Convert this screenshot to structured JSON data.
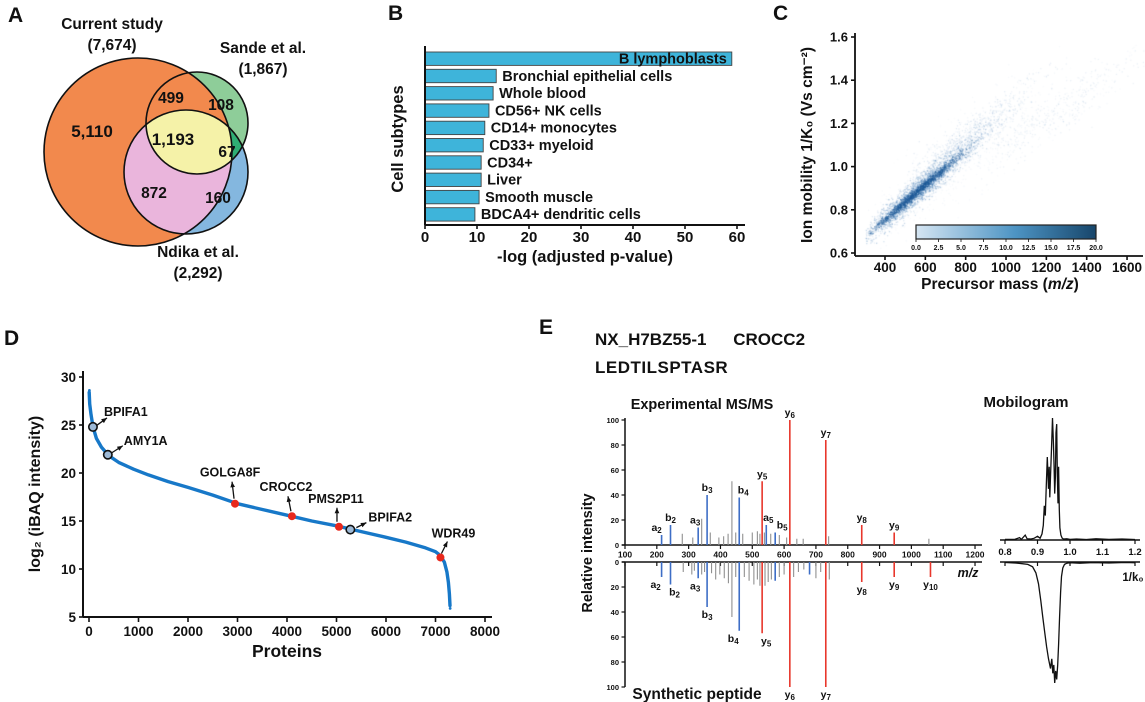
{
  "figure_labels": {
    "a": "A",
    "b": "B",
    "c": "C",
    "d": "D",
    "e": "E"
  },
  "colors": {
    "venn_current": "#f2894d",
    "venn_sande": "#8ecd99",
    "venn_ndika": "#84b7df",
    "venn_current_ndika": "#eab5dc",
    "venn_sande_ndika": "#2fae74",
    "venn_all": "#f5f2a8",
    "bar_fill": "#3eb4da",
    "curve_blue": "#1778c8",
    "marker_red": "#e8281c",
    "peak_blue": "#3e6ec6",
    "label_blue": "#222fa8",
    "peak_red": "#e8372c",
    "label_red": "#e8251a",
    "peak_gray": "#909090",
    "cbar_light": "#d5e5f2",
    "cbar_dark": "#17466b"
  },
  "chart_data": [
    {
      "id": "venn",
      "type": "venn",
      "sets": [
        {
          "name": "Current study",
          "count": "(7,674)"
        },
        {
          "name": "Sande et al.",
          "count": "(1,867)"
        },
        {
          "name": "Ndika et al.",
          "count": "(2,292)"
        }
      ],
      "regions": {
        "current_only": "5,110",
        "current_sande": "499",
        "sande_only": "108",
        "all_three": "1,193",
        "sande_ndika": "67",
        "current_ndika": "872",
        "ndika_only": "160"
      }
    },
    {
      "id": "cell-subtypes",
      "type": "bar",
      "orientation": "horizontal",
      "categories": [
        "B lymphoblasts",
        "Bronchial epithelial cells",
        "Whole blood",
        "CD56+ NK cells",
        "CD14+ monocytes",
        "CD33+ myeloid",
        "CD34+",
        "Liver",
        "Smooth muscle",
        "BDCA4+ dendritic cells"
      ],
      "values": [
        59,
        13.7,
        13.1,
        12.3,
        11.5,
        11.2,
        10.8,
        10.8,
        10.4,
        9.6
      ],
      "xlabel": "-log (adjusted p-value)",
      "ylabel": "Cell subtypes",
      "xlim": [
        0,
        60
      ],
      "xticks": [
        0,
        10,
        20,
        30,
        40,
        50,
        60
      ]
    },
    {
      "id": "ion-mobility",
      "type": "scatter",
      "xlabel_main": "Precursor mass (",
      "xlabel_italic": "m/z",
      "xlabel_end": ")",
      "ylabel": "Ion mobility 1/K₀ (Vs cm⁻²)",
      "xlim": [
        250,
        1700
      ],
      "ylim": [
        0.6,
        1.6
      ],
      "xticks": [
        400,
        600,
        800,
        1000,
        1200,
        1400,
        1600
      ],
      "yticks": [
        "0.6",
        "0.8",
        "1.0",
        "1.2",
        "1.4",
        "1.6"
      ],
      "colorbar_ticks": [
        "0.0",
        "2.5",
        "5.0",
        "7.5",
        "10.0",
        "12.5",
        "15.0",
        "17.5",
        "20.0"
      ],
      "density_bands": [
        {
          "n": 2400,
          "x_mean": 560,
          "x_sd": 130,
          "x_min": 300,
          "x_max": 1000,
          "slope": 0.0008,
          "intercept": 0.44,
          "noise": 0.032,
          "alpha": 0.3
        },
        {
          "n": 1300,
          "x_mean": 560,
          "x_sd": 110,
          "x_min": 320,
          "x_max": 950,
          "slope": 0.0008,
          "intercept": 0.44,
          "noise": 0.011,
          "alpha": 0.55,
          "core": true
        },
        {
          "n": 900,
          "x_mean": 820,
          "x_sd": 170,
          "x_min": 500,
          "x_max": 1300,
          "slope": 0.0007,
          "intercept": 0.56,
          "noise": 0.05,
          "alpha": 0.14
        },
        {
          "n": 450,
          "x_mean": 1250,
          "x_sd": 230,
          "x_min": 850,
          "x_max": 1700,
          "slope": 0.00066,
          "intercept": 0.43,
          "noise": 0.055,
          "alpha": 0.11
        },
        {
          "n": 600,
          "x_mean": 700,
          "x_sd": 220,
          "x_min": 300,
          "x_max": 1450,
          "slope": 0.00075,
          "intercept": 0.47,
          "noise": 0.09,
          "alpha": 0.06
        }
      ]
    },
    {
      "id": "ibaq-rank",
      "type": "scatter",
      "xlabel": "Proteins",
      "ylabel": "log₂ (iBAQ intensity)",
      "xlim": [
        0,
        8000
      ],
      "ylim": [
        5,
        30
      ],
      "xticks": [
        0,
        1000,
        2000,
        3000,
        4000,
        5000,
        6000,
        7000,
        8000
      ],
      "yticks": [
        5,
        10,
        15,
        20,
        25,
        30
      ],
      "curve": [
        [
          5,
          28.4
        ],
        [
          15,
          27.2
        ],
        [
          40,
          26.1
        ],
        [
          80,
          24.8
        ],
        [
          150,
          23.6
        ],
        [
          250,
          22.7
        ],
        [
          400,
          21.8
        ],
        [
          600,
          21.1
        ],
        [
          900,
          20.4
        ],
        [
          1200,
          19.8
        ],
        [
          1600,
          19.1
        ],
        [
          2000,
          18.5
        ],
        [
          2500,
          17.7
        ],
        [
          3000,
          16.8
        ],
        [
          3500,
          16.2
        ],
        [
          4000,
          15.6
        ],
        [
          4500,
          15.0
        ],
        [
          5000,
          14.5
        ],
        [
          5500,
          13.9
        ],
        [
          6000,
          13.3
        ],
        [
          6400,
          12.8
        ],
        [
          6800,
          12.2
        ],
        [
          7000,
          11.8
        ],
        [
          7100,
          11.4
        ],
        [
          7180,
          10.7
        ],
        [
          7230,
          9.7
        ],
        [
          7260,
          8.6
        ],
        [
          7280,
          7.4
        ],
        [
          7292,
          6.2
        ]
      ],
      "extra_points": [
        [
          8,
          28.6
        ],
        [
          7296,
          5.9
        ]
      ],
      "annotations": [
        {
          "name": "BPIFA1",
          "x": 80,
          "y": 24.8,
          "marker": "open"
        },
        {
          "name": "AMY1A",
          "x": 380,
          "y": 21.9,
          "marker": "open"
        },
        {
          "name": "GOLGA8F",
          "x": 2950,
          "y": 16.8,
          "marker": "red"
        },
        {
          "name": "CROCC2",
          "x": 4100,
          "y": 15.5,
          "marker": "red"
        },
        {
          "name": "PMS2P11",
          "x": 5050,
          "y": 14.4,
          "marker": "red"
        },
        {
          "name": "BPIFA2",
          "x": 5280,
          "y": 14.1,
          "marker": "open"
        },
        {
          "name": "WDR49",
          "x": 7100,
          "y": 11.2,
          "marker": "red"
        }
      ]
    },
    {
      "id": "msms-mirror",
      "type": "mirror-spectrum",
      "accession": "NX_H7BZ55-1",
      "protein": "CROCC2",
      "peptide": "LEDTILSPTASR",
      "top_title": "Experimental MS/MS",
      "bottom_title": "Synthetic peptide",
      "xlabel_italic": "m/z",
      "ylabel": "Relative intensity",
      "xlim": [
        100,
        1200
      ],
      "xticks": [
        100,
        200,
        300,
        400,
        500,
        600,
        700,
        800,
        900,
        1000,
        1100,
        1200
      ],
      "yticks": [
        0,
        20,
        40,
        60,
        80,
        100
      ],
      "experimental_peaks": [
        {
          "mz": 215,
          "i": 8,
          "ion": "a2",
          "t": "b",
          "dx": -5
        },
        {
          "mz": 243,
          "i": 16,
          "ion": "b2",
          "t": "b"
        },
        {
          "mz": 280,
          "i": 9,
          "t": "x"
        },
        {
          "mz": 313,
          "i": 6,
          "t": "x"
        },
        {
          "mz": 330,
          "i": 14,
          "ion": "a3",
          "t": "b",
          "dx": -3
        },
        {
          "mz": 341,
          "i": 21,
          "t": "x"
        },
        {
          "mz": 358,
          "i": 40,
          "ion": "b3",
          "t": "b"
        },
        {
          "mz": 368,
          "i": 10,
          "t": "x"
        },
        {
          "mz": 395,
          "i": 6,
          "t": "x"
        },
        {
          "mz": 410,
          "i": 7,
          "t": "x"
        },
        {
          "mz": 424,
          "i": 9,
          "t": "x"
        },
        {
          "mz": 436,
          "i": 51,
          "t": "x"
        },
        {
          "mz": 448,
          "i": 10,
          "t": "x"
        },
        {
          "mz": 459,
          "i": 38,
          "ion": "b4",
          "t": "b",
          "dx": 4
        },
        {
          "mz": 470,
          "i": 9,
          "t": "x"
        },
        {
          "mz": 500,
          "i": 10,
          "t": "x"
        },
        {
          "mz": 516,
          "i": 11,
          "t": "x"
        },
        {
          "mz": 524,
          "i": 9,
          "t": "x"
        },
        {
          "mz": 531,
          "i": 51,
          "ion": "y5",
          "t": "y"
        },
        {
          "mz": 538,
          "i": 10,
          "t": "x"
        },
        {
          "mz": 544,
          "i": 16,
          "ion": "a5",
          "t": "b",
          "dx": 2
        },
        {
          "mz": 558,
          "i": 9,
          "t": "x"
        },
        {
          "mz": 572,
          "i": 10,
          "ion": "b5",
          "t": "b",
          "dx": 7
        },
        {
          "mz": 585,
          "i": 8,
          "t": "x"
        },
        {
          "mz": 608,
          "i": 6,
          "t": "x"
        },
        {
          "mz": 618,
          "i": 100,
          "ion": "y6",
          "t": "y"
        },
        {
          "mz": 640,
          "i": 5,
          "t": "x"
        },
        {
          "mz": 660,
          "i": 5,
          "t": "x"
        },
        {
          "mz": 731,
          "i": 84,
          "ion": "y7",
          "t": "y"
        },
        {
          "mz": 740,
          "i": 7,
          "t": "x"
        },
        {
          "mz": 844,
          "i": 16,
          "ion": "y8",
          "t": "y"
        },
        {
          "mz": 946,
          "i": 10,
          "ion": "y9",
          "t": "y"
        },
        {
          "mz": 1055,
          "i": 5,
          "t": "x"
        }
      ],
      "synthetic_peaks": [
        {
          "mz": 215,
          "i": 12,
          "ion": "a2",
          "t": "b",
          "dx": -6
        },
        {
          "mz": 243,
          "i": 18,
          "ion": "b2",
          "t": "b",
          "dx": 4
        },
        {
          "mz": 283,
          "i": 8,
          "t": "x"
        },
        {
          "mz": 310,
          "i": 10,
          "t": "x"
        },
        {
          "mz": 318,
          "i": 7,
          "t": "x"
        },
        {
          "mz": 330,
          "i": 13,
          "ion": "a3",
          "t": "b",
          "dx": -3
        },
        {
          "mz": 341,
          "i": 10,
          "t": "x"
        },
        {
          "mz": 350,
          "i": 8,
          "t": "x"
        },
        {
          "mz": 358,
          "i": 36,
          "ion": "b3",
          "t": "b"
        },
        {
          "mz": 372,
          "i": 9,
          "t": "x"
        },
        {
          "mz": 385,
          "i": 14,
          "t": "x"
        },
        {
          "mz": 398,
          "i": 10,
          "t": "x"
        },
        {
          "mz": 412,
          "i": 13,
          "t": "x"
        },
        {
          "mz": 425,
          "i": 17,
          "t": "x"
        },
        {
          "mz": 436,
          "i": 44,
          "t": "x"
        },
        {
          "mz": 448,
          "i": 12,
          "t": "x"
        },
        {
          "mz": 459,
          "i": 55,
          "ion": "b4",
          "t": "b",
          "dx": -6
        },
        {
          "mz": 475,
          "i": 12,
          "t": "x"
        },
        {
          "mz": 490,
          "i": 15,
          "t": "x"
        },
        {
          "mz": 505,
          "i": 18,
          "t": "x"
        },
        {
          "mz": 516,
          "i": 14,
          "t": "x"
        },
        {
          "mz": 524,
          "i": 19,
          "t": "x"
        },
        {
          "mz": 531,
          "i": 57,
          "ion": "y5",
          "t": "y",
          "dx": 4
        },
        {
          "mz": 540,
          "i": 19,
          "t": "x"
        },
        {
          "mz": 550,
          "i": 16,
          "t": "x"
        },
        {
          "mz": 560,
          "i": 14,
          "t": "x"
        },
        {
          "mz": 572,
          "i": 15,
          "t": "b"
        },
        {
          "mz": 585,
          "i": 12,
          "t": "x"
        },
        {
          "mz": 600,
          "i": 10,
          "t": "x"
        },
        {
          "mz": 618,
          "i": 100,
          "ion": "y6",
          "t": "y"
        },
        {
          "mz": 630,
          "i": 12,
          "t": "x"
        },
        {
          "mz": 645,
          "i": 8,
          "t": "x"
        },
        {
          "mz": 662,
          "i": 6,
          "t": "x"
        },
        {
          "mz": 680,
          "i": 10,
          "t": "b"
        },
        {
          "mz": 700,
          "i": 13,
          "t": "x"
        },
        {
          "mz": 715,
          "i": 8,
          "t": "x"
        },
        {
          "mz": 731,
          "i": 100,
          "ion": "y7",
          "t": "y"
        },
        {
          "mz": 742,
          "i": 14,
          "t": "x"
        },
        {
          "mz": 844,
          "i": 16,
          "ion": "y8",
          "t": "y"
        },
        {
          "mz": 946,
          "i": 12,
          "ion": "y9",
          "t": "y"
        },
        {
          "mz": 1060,
          "i": 12,
          "ion": "y10",
          "t": "y"
        }
      ]
    },
    {
      "id": "mobilogram",
      "type": "line",
      "title": "Mobilogram",
      "xlabel": "1/k₀",
      "xlim": [
        0.8,
        1.2
      ],
      "xticks": [
        "0.8",
        "0.9",
        "1.0",
        "1.1",
        "1.2"
      ],
      "top_trace": [
        [
          0.8,
          0.005
        ],
        [
          0.83,
          0.005
        ],
        [
          0.845,
          0.02
        ],
        [
          0.85,
          0.005
        ],
        [
          0.862,
          0.04
        ],
        [
          0.868,
          0.01
        ],
        [
          0.88,
          0.008
        ],
        [
          0.89,
          0.015
        ],
        [
          0.9,
          0.03
        ],
        [
          0.908,
          0.015
        ],
        [
          0.914,
          0.05
        ],
        [
          0.918,
          0.12
        ],
        [
          0.921,
          0.28
        ],
        [
          0.924,
          0.2
        ],
        [
          0.927,
          0.45
        ],
        [
          0.93,
          0.68
        ],
        [
          0.932,
          0.55
        ],
        [
          0.934,
          0.42
        ],
        [
          0.936,
          0.6
        ],
        [
          0.938,
          0.35
        ],
        [
          0.94,
          0.52
        ],
        [
          0.943,
          0.75
        ],
        [
          0.946,
          1.0
        ],
        [
          0.949,
          0.8
        ],
        [
          0.951,
          0.6
        ],
        [
          0.953,
          0.38
        ],
        [
          0.955,
          0.52
        ],
        [
          0.957,
          0.88
        ],
        [
          0.959,
          0.95
        ],
        [
          0.961,
          0.55
        ],
        [
          0.963,
          0.3
        ],
        [
          0.965,
          0.6
        ],
        [
          0.967,
          0.25
        ],
        [
          0.969,
          0.1
        ],
        [
          0.972,
          0.04
        ],
        [
          0.976,
          0.015
        ],
        [
          0.98,
          0.008
        ],
        [
          0.99,
          0.01
        ],
        [
          1.0,
          0.005
        ],
        [
          1.02,
          0.008
        ],
        [
          1.05,
          0.004
        ],
        [
          1.08,
          0.01
        ],
        [
          1.12,
          0.005
        ],
        [
          1.16,
          0.008
        ],
        [
          1.2,
          0.004
        ]
      ],
      "bottom_trace": [
        [
          0.8,
          0.004
        ],
        [
          0.84,
          0.01
        ],
        [
          0.87,
          0.02
        ],
        [
          0.885,
          0.04
        ],
        [
          0.895,
          0.09
        ],
        [
          0.903,
          0.18
        ],
        [
          0.91,
          0.32
        ],
        [
          0.916,
          0.45
        ],
        [
          0.922,
          0.58
        ],
        [
          0.928,
          0.7
        ],
        [
          0.934,
          0.8
        ],
        [
          0.94,
          0.88
        ],
        [
          0.944,
          0.8
        ],
        [
          0.947,
          0.92
        ],
        [
          0.95,
          0.85
        ],
        [
          0.953,
          1.0
        ],
        [
          0.956,
          0.9
        ],
        [
          0.959,
          0.97
        ],
        [
          0.962,
          0.85
        ],
        [
          0.965,
          0.68
        ],
        [
          0.968,
          0.45
        ],
        [
          0.971,
          0.25
        ],
        [
          0.974,
          0.12
        ],
        [
          0.978,
          0.05
        ],
        [
          0.983,
          0.02
        ],
        [
          0.99,
          0.01
        ],
        [
          1.0,
          0.006
        ],
        [
          1.03,
          0.01
        ],
        [
          1.07,
          0.005
        ],
        [
          1.12,
          0.008
        ],
        [
          1.17,
          0.004
        ],
        [
          1.2,
          0.006
        ]
      ]
    }
  ]
}
